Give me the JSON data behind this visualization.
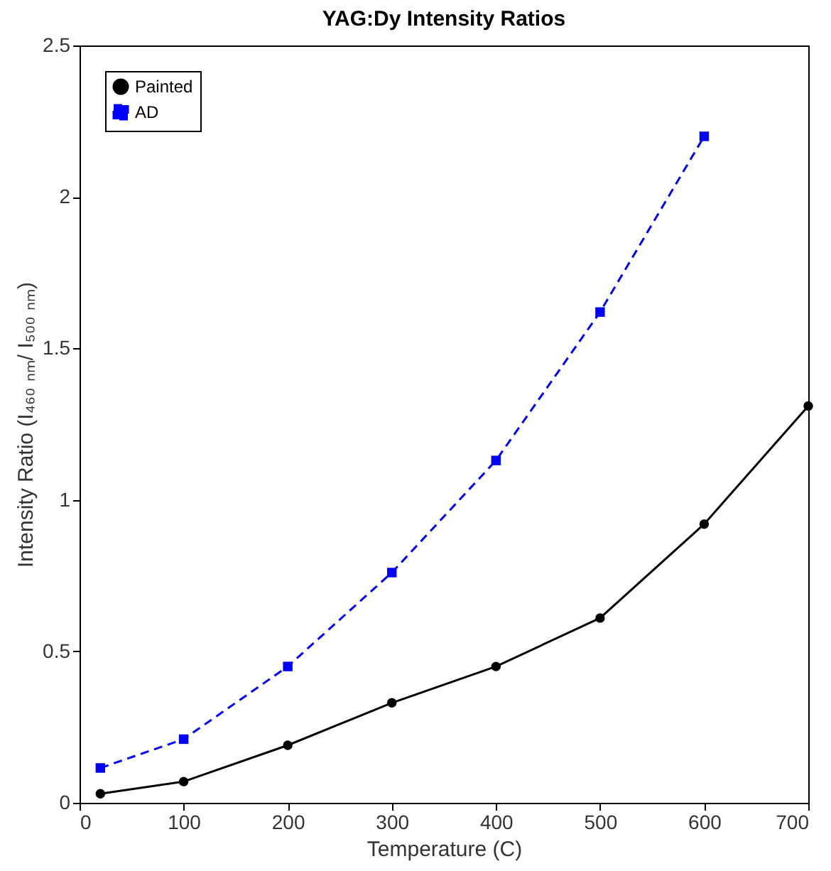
{
  "chart_data": {
    "type": "line",
    "title": "YAG:Dy Intensity Ratios",
    "xlabel": "Temperature (C)",
    "ylabel": "Intensity Ratio (I₄₆₀ ₙₘ/ I₅₀₀ ₙₘ)",
    "x": [
      20,
      100,
      200,
      300,
      400,
      500,
      600,
      700
    ],
    "series": [
      {
        "name": "Painted",
        "color": "#000000",
        "marker": "circle",
        "line_style": "solid",
        "values": [
          0.03,
          0.07,
          0.19,
          0.33,
          0.45,
          0.61,
          0.92,
          1.31
        ]
      },
      {
        "name": "AD",
        "color": "#0000ff",
        "marker": "square",
        "line_style": "dashed",
        "x": [
          20,
          100,
          200,
          300,
          400,
          500,
          600
        ],
        "values": [
          0.115,
          0.21,
          0.45,
          0.76,
          1.13,
          1.62,
          2.2
        ]
      }
    ],
    "xlim": [
      0,
      700
    ],
    "xticks": [
      0,
      100,
      200,
      300,
      400,
      500,
      600,
      700
    ],
    "ylim": [
      0,
      2.5
    ],
    "yticks": [
      0,
      0.5,
      1,
      1.5,
      2,
      2.5
    ],
    "grid": false,
    "legend": "top left"
  }
}
